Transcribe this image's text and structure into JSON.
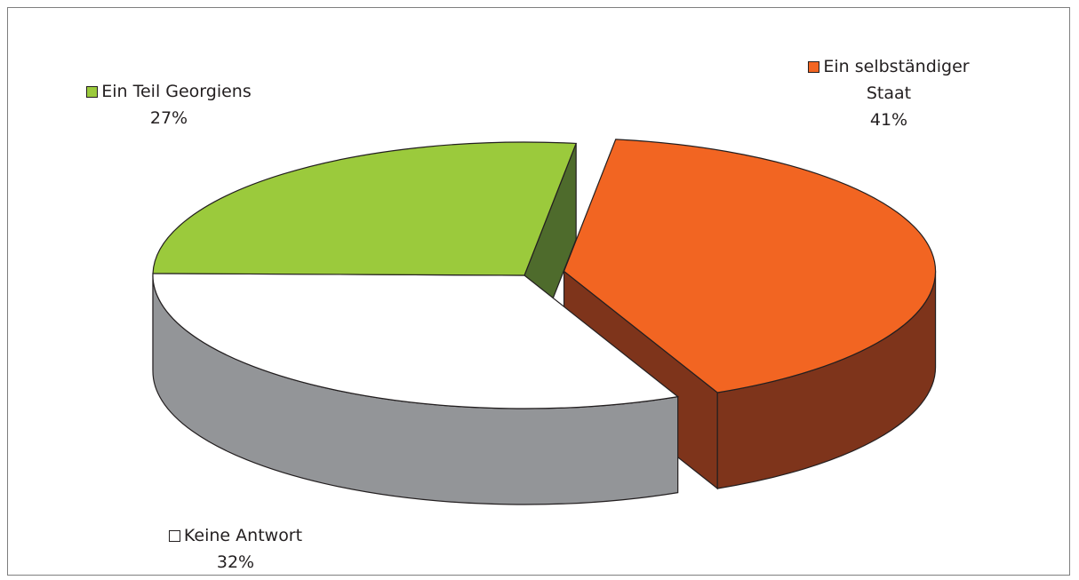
{
  "chart_data": {
    "type": "pie",
    "three_d": true,
    "legend_placement": "data labels next to slices",
    "slices": [
      {
        "label": "Ein selbständiger",
        "label_line2": "Staat",
        "value": 41,
        "value_label": "41%",
        "color": "#f26522",
        "side_color": "#7e341b",
        "exploded": true
      },
      {
        "label": "Keine Antwort",
        "value": 32,
        "value_label": "32%",
        "color": "#ffffff",
        "side_color": "#939598",
        "exploded": false
      },
      {
        "label": "Ein Teil Georgiens",
        "value": 27,
        "value_label": "27%",
        "color": "#9bca3c",
        "side_color": "#4e6b2c",
        "exploded": false
      }
    ]
  }
}
